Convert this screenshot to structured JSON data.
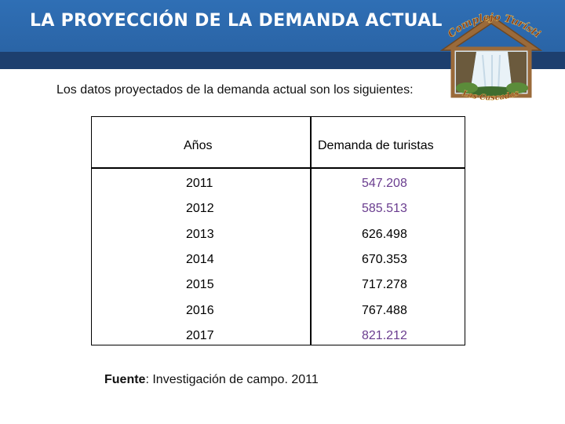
{
  "header": {
    "title": "LA PROYECCIÓN DE LA DEMANDA ACTUAL",
    "logo_text_top": "Complejo Turístico",
    "logo_text_bottom": "Las Cascadas"
  },
  "intro": "Los datos proyectados de la demanda actual son los siguientes:",
  "table": {
    "headers": [
      "Años",
      "Demanda de turistas"
    ],
    "rows": [
      {
        "year": "2011",
        "demand": "547.208",
        "color": "#6a3d8f"
      },
      {
        "year": "2012",
        "demand": "585.513",
        "color": "#6a3d8f"
      },
      {
        "year": "2013",
        "demand": "626.498",
        "color": "#000000"
      },
      {
        "year": "2014",
        "demand": "670.353",
        "color": "#000000"
      },
      {
        "year": "2015",
        "demand": "717.278",
        "color": "#000000"
      },
      {
        "year": "2016",
        "demand": "767.488",
        "color": "#000000"
      },
      {
        "year": "2017",
        "demand": "821.212",
        "color": "#6a3d8f"
      }
    ]
  },
  "source": {
    "label": "Fuente",
    "text": ": Investigación de campo. 2011"
  },
  "colors": {
    "header_blue": "#2f6fb5",
    "header_band": "#1d3f6e",
    "value_purple": "#6a3d8f"
  }
}
